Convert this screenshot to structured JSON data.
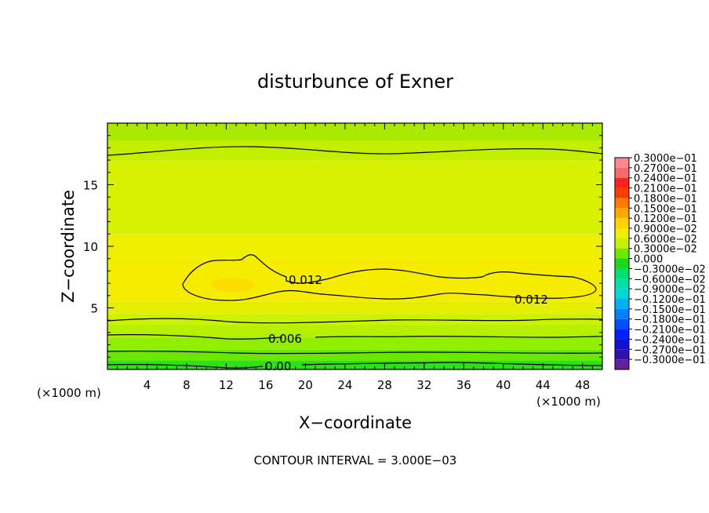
{
  "chart_data": {
    "type": "heatmap",
    "title": "disturbunce of Exner",
    "xlabel": "X−coordinate",
    "ylabel": "Z−coordinate",
    "xlim": [
      0,
      50
    ],
    "ylim": [
      0,
      20
    ],
    "x_ticks": [
      "4",
      "8",
      "12",
      "16",
      "20",
      "24",
      "28",
      "32",
      "36",
      "40",
      "44",
      "48"
    ],
    "y_ticks": [
      "5",
      "10",
      "15"
    ],
    "x_unit": "(×1000 m)",
    "y_unit": "(×1000 m)",
    "footer": "CONTOUR INTERVAL = 3.000E−03",
    "contour_labels": [
      "0.012",
      "0.012",
      "0.006",
      "0.00"
    ],
    "colorbar": {
      "labels": [
        "0.3000e−01",
        "0.2700e−01",
        "0.2400e−01",
        "0.2100e−01",
        "0.1800e−01",
        "0.1500e−01",
        "0.1200e−01",
        "0.9000e−02",
        "0.6000e−02",
        "0.3000e−02",
        "0.000",
        "−0.3000e−02",
        "−0.6000e−02",
        "−0.9000e−02",
        "−0.1200e−01",
        "−0.1500e−01",
        "−0.1800e−01",
        "−0.2100e−01",
        "−0.2400e−01",
        "−0.2700e−01",
        "−0.3000e−01"
      ],
      "colors": [
        "#f88a8a",
        "#f46a6a",
        "#ff2020",
        "#ff3c00",
        "#ff7a00",
        "#ffa800",
        "#ffd200",
        "#eef000",
        "#c6f000",
        "#6ee800",
        "#1cd81c",
        "#00e070",
        "#00e0a8",
        "#00d8d8",
        "#00b0f0",
        "#0080ff",
        "#0050ff",
        "#0020ff",
        "#1010d0",
        "#3010b0",
        "#6020a0"
      ]
    },
    "bands": [
      {
        "z": [
          0.0,
          0.7
        ],
        "color": "#2ee018"
      },
      {
        "z": [
          0.7,
          1.6
        ],
        "color": "#6ae800"
      },
      {
        "z": [
          1.6,
          2.6
        ],
        "color": "#92ee00"
      },
      {
        "z": [
          2.6,
          3.6
        ],
        "color": "#b4f000"
      },
      {
        "z": [
          3.6,
          4.5
        ],
        "color": "#ccf200"
      },
      {
        "z": [
          4.5,
          5.5
        ],
        "color": "#e4f000"
      },
      {
        "z": [
          5.5,
          9.0
        ],
        "color": "#f5ec00"
      },
      {
        "z": [
          9.0,
          11.0
        ],
        "color": "#eef000"
      },
      {
        "z": [
          11.0,
          17.0
        ],
        "color": "#d6f200"
      },
      {
        "z": [
          17.0,
          18.6
        ],
        "color": "#c2ee00"
      },
      {
        "z": [
          18.6,
          20.0
        ],
        "color": "#aaea00"
      }
    ]
  }
}
